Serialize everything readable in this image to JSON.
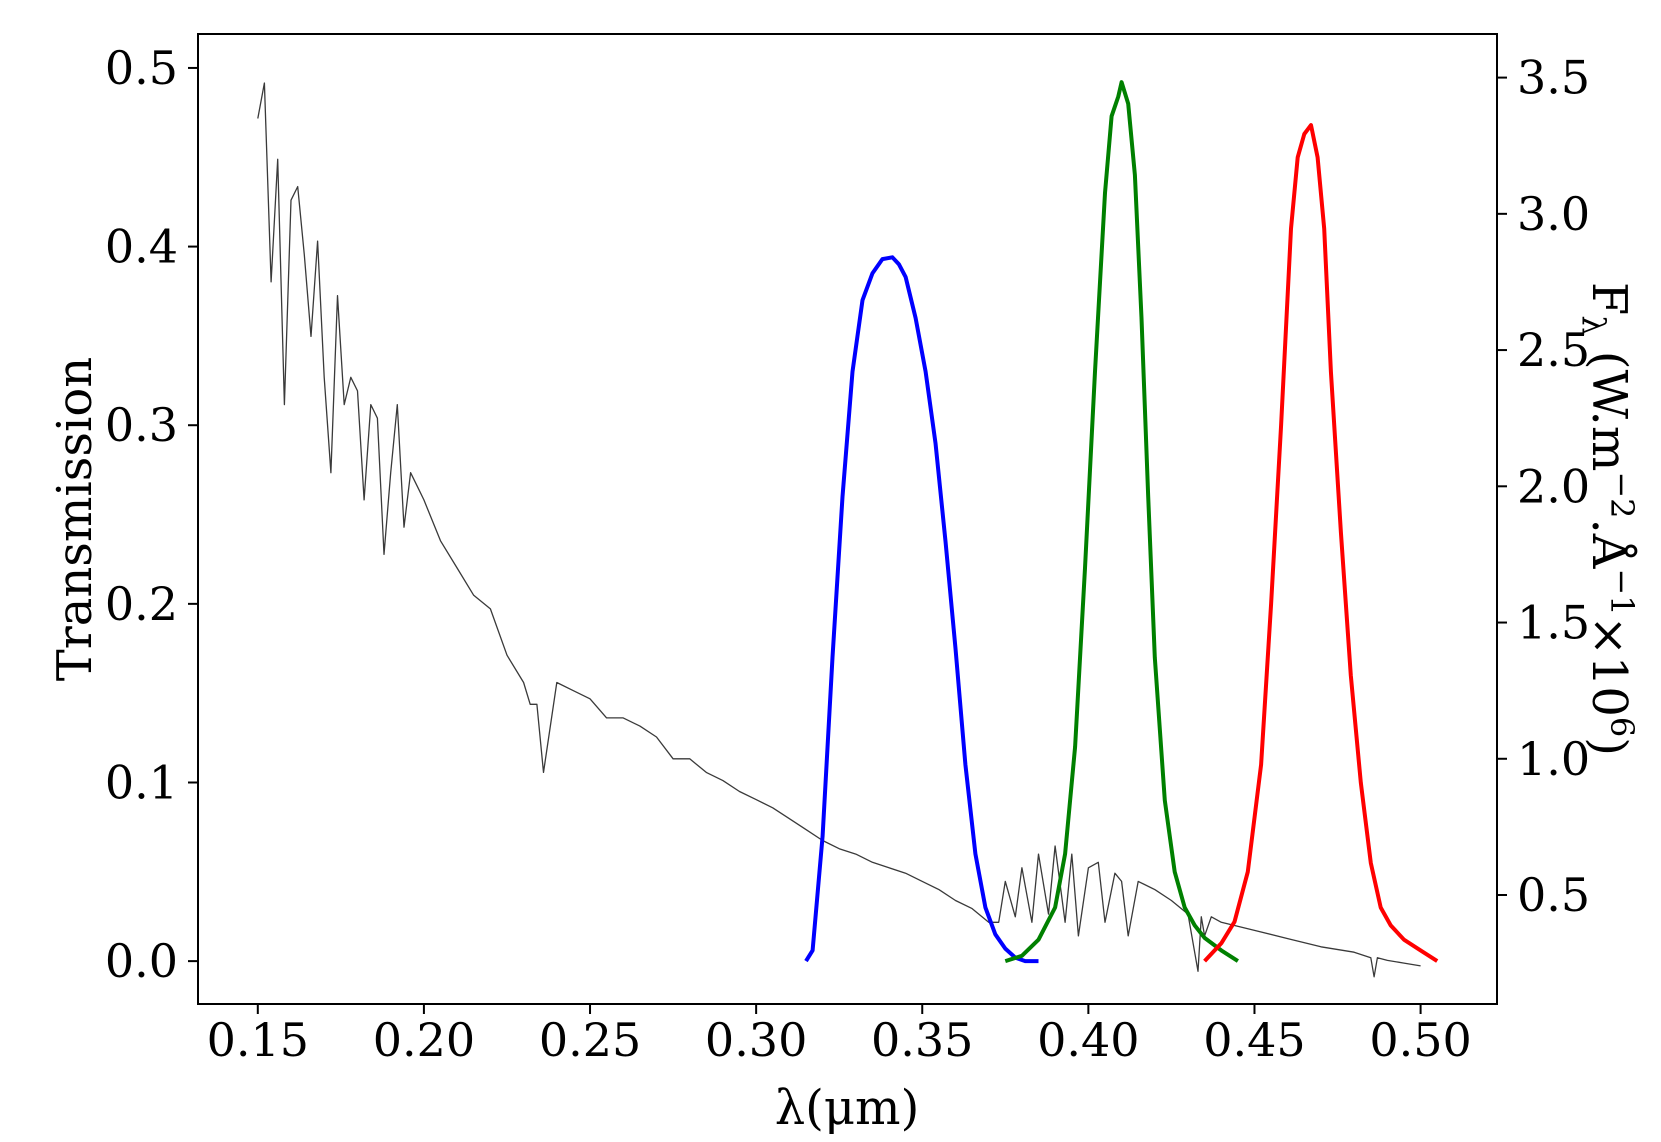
{
  "chart_data": {
    "type": "line",
    "title": "",
    "xlabel": "λ(μm)",
    "ylabel": "Transmission",
    "y2label": {
      "base": "F",
      "sub": "λ",
      "units_open": " (W.m",
      "exp1": "−2",
      "mid": ".Å",
      "exp2": "−1",
      "times": "×10",
      "exp3": "6",
      "close": ")"
    },
    "xlim": [
      0.132,
      0.523
    ],
    "ylim": [
      -0.024,
      0.519
    ],
    "y2lim": [
      0.1,
      3.66
    ],
    "xticks": [
      0.15,
      0.2,
      0.25,
      0.3,
      0.35,
      0.4,
      0.45,
      0.5
    ],
    "xtick_labels": [
      "0.15",
      "0.20",
      "0.25",
      "0.30",
      "0.35",
      "0.40",
      "0.45",
      "0.50"
    ],
    "yticks": [
      0.0,
      0.1,
      0.2,
      0.3,
      0.4,
      0.5
    ],
    "ytick_labels": [
      "0.0",
      "0.1",
      "0.2",
      "0.3",
      "0.4",
      "0.5"
    ],
    "y2ticks": [
      0.5,
      1.0,
      1.5,
      2.0,
      2.5,
      3.0,
      3.5
    ],
    "y2tick_labels": [
      "0.5",
      "1.0",
      "1.5",
      "2.0",
      "2.5",
      "3.0",
      "3.5"
    ],
    "grid": false,
    "colors": {
      "spectrum": "#3a3a3a",
      "blue": "#0000ff",
      "green": "#008000",
      "red": "#ff0000"
    },
    "series": [
      {
        "color": "#3a3a3a",
        "axis": "right",
        "x": [
          0.15,
          0.152,
          0.154,
          0.156,
          0.158,
          0.16,
          0.162,
          0.164,
          0.166,
          0.168,
          0.17,
          0.172,
          0.174,
          0.176,
          0.178,
          0.18,
          0.182,
          0.184,
          0.186,
          0.188,
          0.19,
          0.192,
          0.194,
          0.196,
          0.198,
          0.2,
          0.205,
          0.21,
          0.215,
          0.22,
          0.225,
          0.23,
          0.232,
          0.234,
          0.236,
          0.24,
          0.245,
          0.25,
          0.255,
          0.26,
          0.265,
          0.27,
          0.275,
          0.28,
          0.285,
          0.29,
          0.295,
          0.3,
          0.305,
          0.31,
          0.315,
          0.32,
          0.325,
          0.33,
          0.335,
          0.34,
          0.345,
          0.35,
          0.355,
          0.36,
          0.365,
          0.37,
          0.373,
          0.375,
          0.378,
          0.38,
          0.383,
          0.385,
          0.388,
          0.39,
          0.393,
          0.395,
          0.397,
          0.4,
          0.403,
          0.405,
          0.408,
          0.41,
          0.412,
          0.415,
          0.42,
          0.425,
          0.43,
          0.433,
          0.434,
          0.435,
          0.437,
          0.44,
          0.45,
          0.46,
          0.47,
          0.48,
          0.485,
          0.486,
          0.487,
          0.49,
          0.495,
          0.5
        ],
        "y": [
          3.35,
          3.48,
          2.75,
          3.2,
          2.3,
          3.05,
          3.1,
          2.85,
          2.55,
          2.9,
          2.4,
          2.05,
          2.7,
          2.3,
          2.4,
          2.35,
          1.95,
          2.3,
          2.25,
          1.75,
          2.05,
          2.3,
          1.85,
          2.05,
          2.0,
          1.95,
          1.8,
          1.7,
          1.6,
          1.55,
          1.38,
          1.28,
          1.2,
          1.2,
          0.95,
          1.28,
          1.25,
          1.22,
          1.15,
          1.15,
          1.12,
          1.08,
          1.0,
          1.0,
          0.95,
          0.92,
          0.88,
          0.85,
          0.82,
          0.78,
          0.74,
          0.7,
          0.67,
          0.65,
          0.62,
          0.6,
          0.58,
          0.55,
          0.52,
          0.48,
          0.45,
          0.4,
          0.4,
          0.55,
          0.42,
          0.6,
          0.4,
          0.65,
          0.43,
          0.68,
          0.4,
          0.65,
          0.35,
          0.6,
          0.62,
          0.4,
          0.58,
          0.55,
          0.35,
          0.55,
          0.52,
          0.48,
          0.43,
          0.22,
          0.42,
          0.35,
          0.42,
          0.4,
          0.37,
          0.34,
          0.31,
          0.29,
          0.27,
          0.2,
          0.27,
          0.26,
          0.25,
          0.24
        ]
      },
      {
        "color": "#0000ff",
        "axis": "left",
        "x": [
          0.315,
          0.317,
          0.32,
          0.323,
          0.326,
          0.329,
          0.332,
          0.335,
          0.338,
          0.341,
          0.343,
          0.345,
          0.348,
          0.351,
          0.354,
          0.357,
          0.36,
          0.363,
          0.366,
          0.369,
          0.372,
          0.375,
          0.378,
          0.381,
          0.383,
          0.385
        ],
        "y": [
          0.0,
          0.006,
          0.07,
          0.17,
          0.26,
          0.33,
          0.37,
          0.385,
          0.393,
          0.394,
          0.39,
          0.383,
          0.36,
          0.33,
          0.29,
          0.235,
          0.175,
          0.11,
          0.06,
          0.03,
          0.015,
          0.007,
          0.002,
          0.0,
          0.0,
          0.0
        ]
      },
      {
        "color": "#008000",
        "axis": "left",
        "x": [
          0.375,
          0.38,
          0.385,
          0.39,
          0.393,
          0.396,
          0.399,
          0.402,
          0.405,
          0.407,
          0.409,
          0.41,
          0.412,
          0.414,
          0.416,
          0.418,
          0.42,
          0.423,
          0.426,
          0.429,
          0.432,
          0.435,
          0.44,
          0.445
        ],
        "y": [
          0.0,
          0.003,
          0.012,
          0.03,
          0.06,
          0.12,
          0.22,
          0.33,
          0.43,
          0.473,
          0.484,
          0.492,
          0.48,
          0.44,
          0.36,
          0.26,
          0.17,
          0.09,
          0.05,
          0.03,
          0.02,
          0.013,
          0.006,
          0.0
        ]
      },
      {
        "color": "#ff0000",
        "axis": "left",
        "x": [
          0.435,
          0.44,
          0.444,
          0.448,
          0.452,
          0.455,
          0.458,
          0.461,
          0.463,
          0.465,
          0.467,
          0.469,
          0.471,
          0.473,
          0.476,
          0.479,
          0.482,
          0.485,
          0.488,
          0.491,
          0.495,
          0.5,
          0.505
        ],
        "y": [
          0.0,
          0.01,
          0.022,
          0.05,
          0.11,
          0.2,
          0.3,
          0.41,
          0.45,
          0.463,
          0.468,
          0.45,
          0.41,
          0.33,
          0.24,
          0.16,
          0.1,
          0.055,
          0.03,
          0.02,
          0.012,
          0.006,
          0.0
        ]
      }
    ]
  }
}
